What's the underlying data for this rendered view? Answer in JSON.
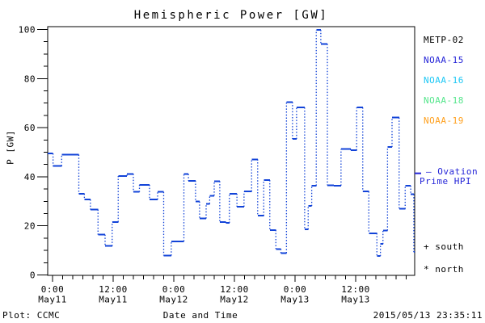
{
  "title": "Hemispheric Power [GW]",
  "legend": {
    "items": [
      {
        "label": "METP-02",
        "color": "#000000"
      },
      {
        "label": "NOAA-15",
        "color": "#2424d8"
      },
      {
        "label": "NOAA-16",
        "color": "#1ec8f5"
      },
      {
        "label": "NOAA-18",
        "color": "#55e68c"
      },
      {
        "label": "NOAA-19",
        "color": "#ffa01e"
      }
    ]
  },
  "ovation": {
    "line1": "— Ovation",
    "line2": "Prime HPI",
    "color": "#2424d8",
    "marker_value_gw": 41.4
  },
  "hemisphere_markers": {
    "south": "+ south",
    "north": "* north"
  },
  "footer": {
    "left": "Plot: CCMC",
    "center": "Date and Time",
    "right": "2015/05/13 23:35:11"
  },
  "y_axis": {
    "label": "P [GW]",
    "min": 0,
    "max": 100,
    "major_ticks": [
      0,
      20,
      40,
      60,
      80,
      100
    ],
    "minor_step": 5
  },
  "x_axis": {
    "title": "Date and Time",
    "minor_step_hours": 2,
    "major_ticks": [
      {
        "hour": 0,
        "time": "0:00",
        "date": "May11"
      },
      {
        "hour": 12,
        "time": "12:00",
        "date": "May11"
      },
      {
        "hour": 24,
        "time": "0:00",
        "date": "May12"
      },
      {
        "hour": 36,
        "time": "12:00",
        "date": "May12"
      },
      {
        "hour": 48,
        "time": "0:00",
        "date": "May13"
      },
      {
        "hour": 60,
        "time": "12:00",
        "date": "May13"
      }
    ]
  },
  "chart_data": {
    "type": "line",
    "subtype": "step-post",
    "title": "Hemispheric Power [GW]",
    "xlabel": "Date and Time",
    "ylabel": "P [GW]",
    "x_unit": "hours since 2015-05-11 00:00",
    "xlim": [
      -0.96,
      71.68
    ],
    "ylim": [
      0,
      100
    ],
    "grid": false,
    "legend_position": "right",
    "line_color": "#1243d8",
    "series_name": "Hemispheric Power (Ovation Prime HPI)",
    "points": [
      [
        -0.96,
        49.5
      ],
      [
        0.1,
        44.4
      ],
      [
        1.8,
        49.0
      ],
      [
        5.2,
        33.1
      ],
      [
        6.3,
        30.7
      ],
      [
        7.5,
        26.6
      ],
      [
        9.0,
        16.4
      ],
      [
        10.4,
        11.8
      ],
      [
        11.8,
        21.6
      ],
      [
        13.0,
        40.3
      ],
      [
        14.7,
        41.2
      ],
      [
        16.0,
        33.8
      ],
      [
        17.2,
        36.7
      ],
      [
        19.2,
        30.7
      ],
      [
        20.8,
        33.8
      ],
      [
        22.0,
        7.9
      ],
      [
        23.5,
        13.7
      ],
      [
        26.0,
        41.1
      ],
      [
        26.9,
        38.4
      ],
      [
        28.3,
        29.9
      ],
      [
        29.1,
        23.0
      ],
      [
        30.4,
        29.0
      ],
      [
        31.1,
        32.3
      ],
      [
        32.0,
        38.2
      ],
      [
        33.1,
        21.6
      ],
      [
        34.3,
        21.2
      ],
      [
        35.0,
        33.1
      ],
      [
        36.5,
        27.8
      ],
      [
        37.9,
        34.0
      ],
      [
        39.4,
        47.1
      ],
      [
        40.6,
        24.1
      ],
      [
        41.8,
        38.6
      ],
      [
        43.0,
        18.3
      ],
      [
        44.2,
        10.6
      ],
      [
        45.2,
        8.9
      ],
      [
        46.3,
        70.4
      ],
      [
        47.5,
        55.4
      ],
      [
        48.3,
        68.2
      ],
      [
        49.9,
        18.6
      ],
      [
        50.6,
        28.1
      ],
      [
        51.3,
        36.4
      ],
      [
        52.2,
        99.8
      ],
      [
        53.1,
        94.1
      ],
      [
        54.4,
        36.5
      ],
      [
        55.7,
        36.4
      ],
      [
        57.1,
        51.3
      ],
      [
        59.0,
        50.8
      ],
      [
        60.2,
        68.2
      ],
      [
        61.4,
        34.0
      ],
      [
        62.6,
        17.0
      ],
      [
        64.2,
        7.7
      ],
      [
        64.9,
        12.6
      ],
      [
        65.4,
        18.1
      ],
      [
        66.3,
        52.1
      ],
      [
        67.2,
        64.1
      ],
      [
        68.6,
        26.9
      ],
      [
        69.8,
        36.4
      ],
      [
        70.9,
        32.9
      ],
      [
        71.5,
        9.3
      ]
    ]
  }
}
